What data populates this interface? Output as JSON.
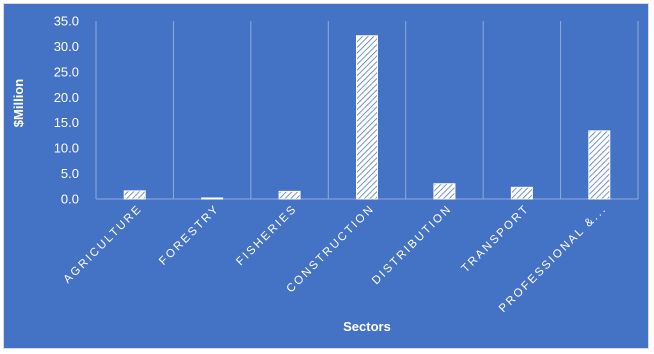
{
  "chart_data": {
    "type": "bar",
    "title": "",
    "xlabel": "Sectors",
    "ylabel": "$Million",
    "ylim": [
      0,
      35
    ],
    "yticks": [
      "0.0",
      "5.0",
      "10.0",
      "15.0",
      "20.0",
      "25.0",
      "30.0",
      "35.0"
    ],
    "categories": [
      "AGRICULTURE",
      "FORESTRY",
      "FISHERIES",
      "CONSTRUCTION",
      "DISTRIBUTION",
      "TRANSPORT",
      "PROFESSIONAL &..."
    ],
    "values": [
      1.6,
      0.2,
      1.5,
      32.1,
      3.0,
      2.3,
      13.4
    ],
    "grid": "vertical category separators",
    "legend": "none",
    "colors": {
      "background": "#4472c4",
      "bar_fill": "#ffffff",
      "bar_hatch": "#4472c4",
      "text": "#ffffff",
      "gridline": "#8faadc"
    }
  }
}
